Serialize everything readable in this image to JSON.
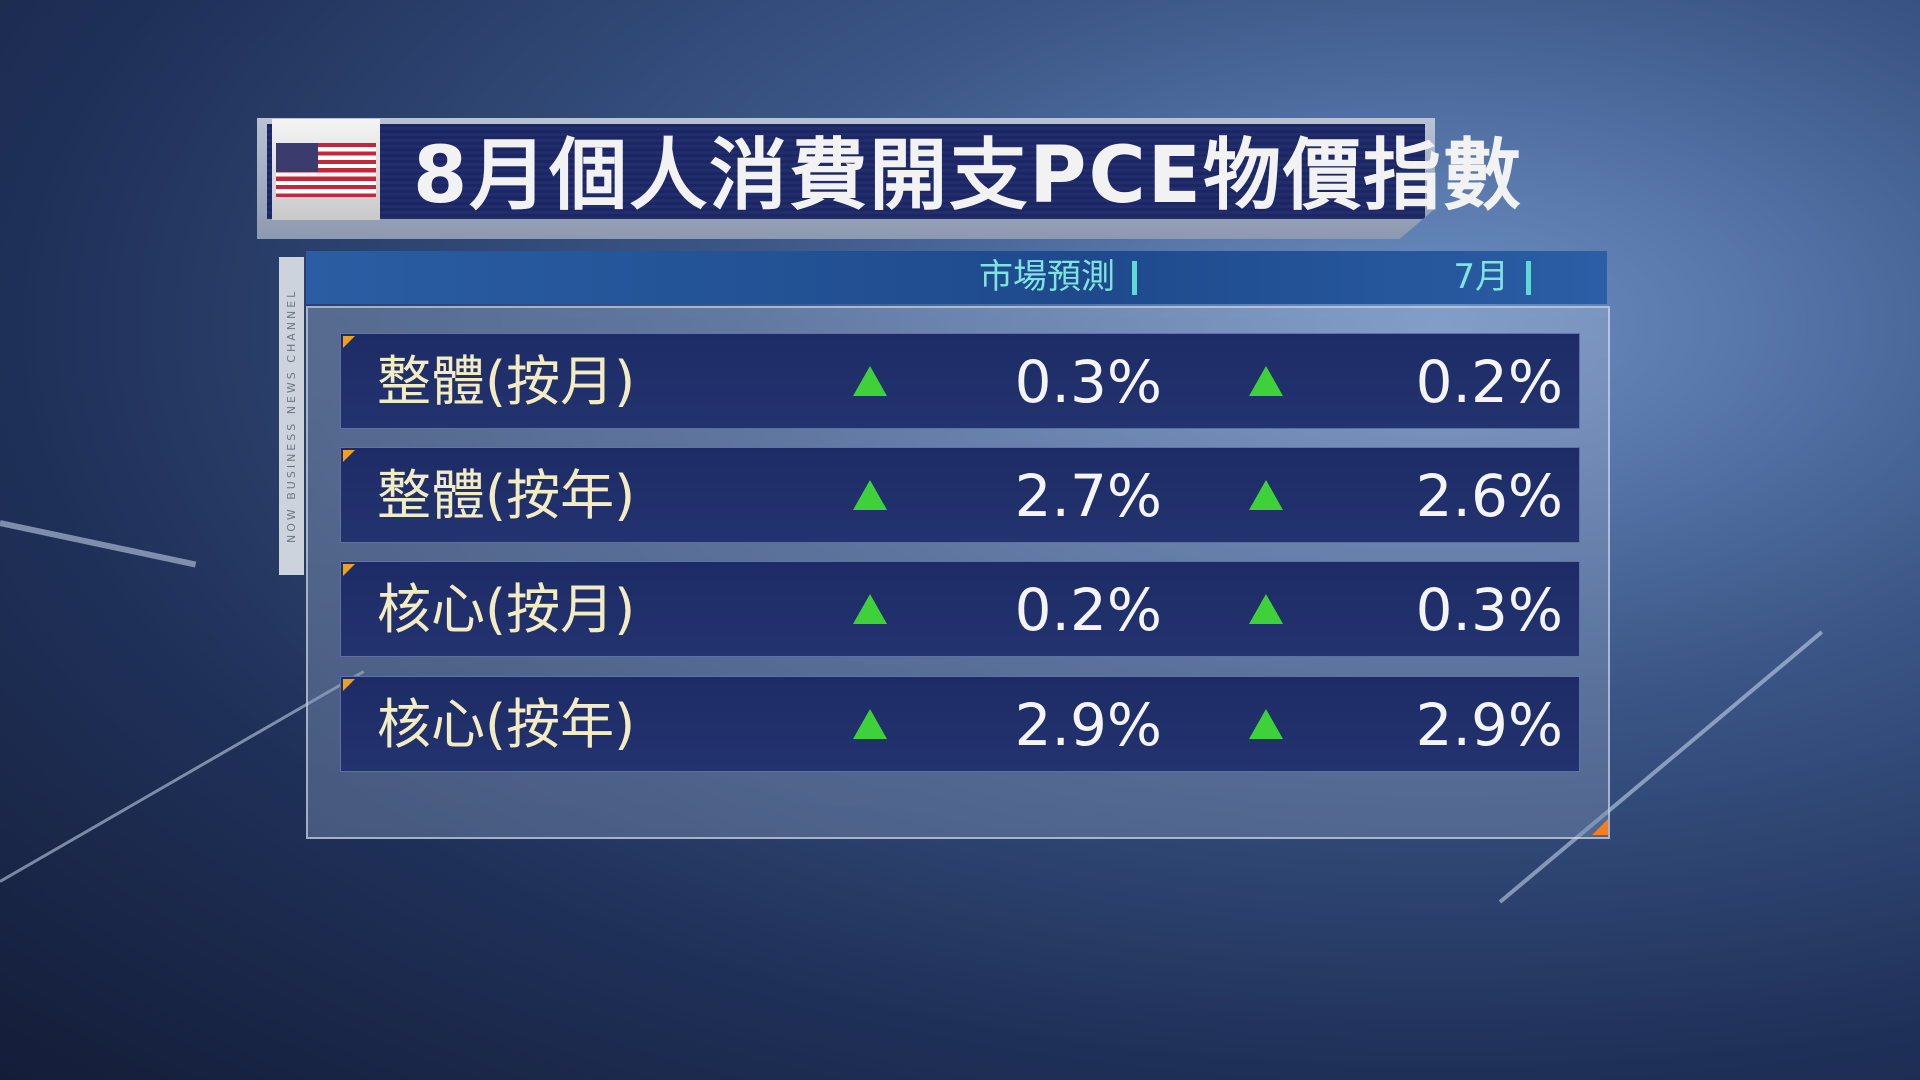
{
  "title": "8月個人消費開支PCE物價指數",
  "flag_icon": "us-flag",
  "side_text": "NOW BUSINESS NEWS CHANNEL",
  "columns": {
    "forecast": "市場預測",
    "previous": "7月"
  },
  "colors": {
    "up_arrow": "#3ed13a",
    "label": "#f3ecc3",
    "column_header": "#7fe3e0"
  },
  "rows": [
    {
      "label": "整體(按月)",
      "forecast": "0.3%",
      "forecast_dir": "up",
      "previous": "0.2%",
      "previous_dir": "up"
    },
    {
      "label": "整體(按年)",
      "forecast": "2.7%",
      "forecast_dir": "up",
      "previous": "2.6%",
      "previous_dir": "up"
    },
    {
      "label": "核心(按月)",
      "forecast": "0.2%",
      "forecast_dir": "up",
      "previous": "0.3%",
      "previous_dir": "up"
    },
    {
      "label": "核心(按年)",
      "forecast": "2.9%",
      "forecast_dir": "up",
      "previous": "2.9%",
      "previous_dir": "up"
    }
  ]
}
